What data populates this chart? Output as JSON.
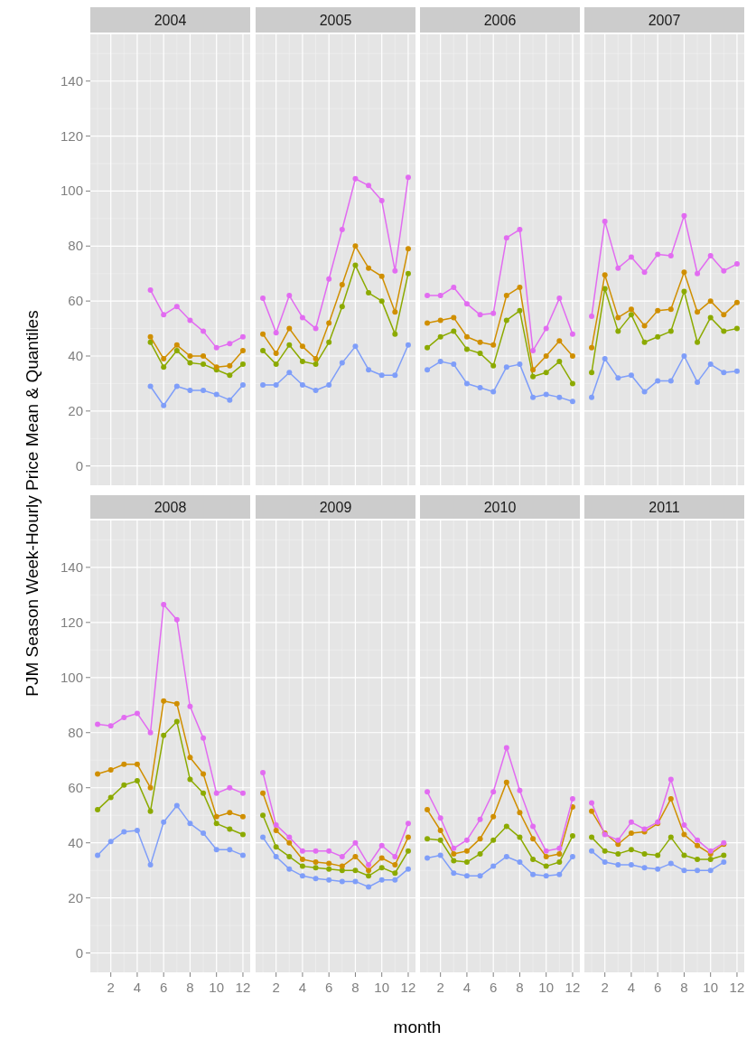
{
  "chart_data": [
    {
      "type": "line",
      "title": "2004",
      "x": [
        5,
        6,
        7,
        8,
        9,
        10,
        11,
        12
      ],
      "xlim": [
        0.45,
        12.55
      ],
      "ylim": [
        -7,
        157
      ],
      "xticks": [
        2,
        4,
        6,
        8,
        10,
        12
      ],
      "yticks": [
        0,
        20,
        40,
        60,
        80,
        100,
        120,
        140
      ],
      "grid": true,
      "marker": "circle",
      "tick_labels": "y",
      "series": [
        {
          "color": "#7f9ef9",
          "values": [
            29,
            22,
            29,
            27.5,
            27.5,
            26,
            24,
            29.5
          ]
        },
        {
          "color": "#8caa00",
          "values": [
            45,
            36,
            42,
            37.5,
            37,
            35,
            33,
            37
          ]
        },
        {
          "color": "#d08f00",
          "values": [
            47,
            39,
            44,
            40,
            40,
            36,
            36.5,
            42
          ]
        },
        {
          "color": "#e26cf1",
          "values": [
            64,
            55,
            58,
            53,
            49,
            43,
            44.5,
            47
          ]
        }
      ]
    },
    {
      "type": "line",
      "title": "2005",
      "x": [
        1,
        2,
        3,
        4,
        5,
        6,
        7,
        8,
        9,
        10,
        11,
        12
      ],
      "xlim": [
        0.45,
        12.55
      ],
      "ylim": [
        -7,
        157
      ],
      "xticks": [
        2,
        4,
        6,
        8,
        10,
        12
      ],
      "yticks": [
        0,
        20,
        40,
        60,
        80,
        100,
        120,
        140
      ],
      "grid": true,
      "marker": "circle",
      "tick_labels": false,
      "series": [
        {
          "color": "#7f9ef9",
          "values": [
            29.5,
            29.5,
            34,
            29.5,
            27.5,
            29.5,
            37.5,
            43.5,
            35,
            33,
            33,
            44
          ]
        },
        {
          "color": "#8caa00",
          "values": [
            42,
            37,
            44,
            38,
            37,
            45,
            58,
            73,
            63,
            60,
            48,
            70
          ]
        },
        {
          "color": "#d08f00",
          "values": [
            48,
            41,
            50,
            43.5,
            39,
            52,
            66,
            80,
            72,
            69,
            56,
            79
          ]
        },
        {
          "color": "#e26cf1",
          "values": [
            61,
            48.5,
            62,
            54,
            50,
            68,
            86,
            104.5,
            102,
            96.5,
            71,
            105
          ]
        }
      ]
    },
    {
      "type": "line",
      "title": "2006",
      "x": [
        1,
        2,
        3,
        4,
        5,
        6,
        7,
        8,
        9,
        10,
        11,
        12
      ],
      "xlim": [
        0.45,
        12.55
      ],
      "ylim": [
        -7,
        157
      ],
      "xticks": [
        2,
        4,
        6,
        8,
        10,
        12
      ],
      "yticks": [
        0,
        20,
        40,
        60,
        80,
        100,
        120,
        140
      ],
      "grid": true,
      "marker": "circle",
      "tick_labels": false,
      "series": [
        {
          "color": "#7f9ef9",
          "values": [
            35,
            38,
            37,
            30,
            28.5,
            27,
            36,
            37,
            25,
            26,
            25,
            23.5
          ]
        },
        {
          "color": "#8caa00",
          "values": [
            43,
            47,
            49,
            42.5,
            41,
            36.5,
            53,
            56.5,
            32.5,
            34,
            38,
            30
          ]
        },
        {
          "color": "#d08f00",
          "values": [
            52,
            53,
            54,
            47,
            45,
            44,
            62,
            65,
            35,
            40,
            45.5,
            40
          ]
        },
        {
          "color": "#e26cf1",
          "values": [
            62,
            62,
            65,
            59,
            55,
            55.5,
            83,
            86,
            42,
            50,
            61,
            48
          ]
        }
      ]
    },
    {
      "type": "line",
      "title": "2007",
      "x": [
        1,
        2,
        3,
        4,
        5,
        6,
        7,
        8,
        9,
        10,
        11,
        12
      ],
      "xlim": [
        0.45,
        12.55
      ],
      "ylim": [
        -7,
        157
      ],
      "xticks": [
        2,
        4,
        6,
        8,
        10,
        12
      ],
      "yticks": [
        0,
        20,
        40,
        60,
        80,
        100,
        120,
        140
      ],
      "grid": true,
      "marker": "circle",
      "tick_labels": false,
      "series": [
        {
          "color": "#7f9ef9",
          "values": [
            25,
            39,
            32,
            33,
            27,
            31,
            31,
            40,
            30.5,
            37,
            34,
            34.5
          ]
        },
        {
          "color": "#8caa00",
          "values": [
            34,
            64.5,
            49,
            55,
            45,
            47,
            49,
            63.5,
            45,
            54,
            49,
            50
          ]
        },
        {
          "color": "#d08f00",
          "values": [
            43,
            69.5,
            54,
            57,
            51,
            56.5,
            57,
            70.5,
            56,
            60,
            55,
            59.5
          ]
        },
        {
          "color": "#e26cf1",
          "values": [
            54.5,
            89,
            72,
            76,
            70.5,
            77,
            76.5,
            91,
            70,
            76.5,
            71,
            73.5
          ]
        }
      ]
    },
    {
      "type": "line",
      "title": "2008",
      "ylabel": "PJM Season Week-Hourly Price Mean & Quantiles",
      "x": [
        1,
        2,
        3,
        4,
        5,
        6,
        7,
        8,
        9,
        10,
        11,
        12
      ],
      "xlim": [
        0.45,
        12.55
      ],
      "ylim": [
        -7,
        157
      ],
      "xticks": [
        2,
        4,
        6,
        8,
        10,
        12
      ],
      "yticks": [
        0,
        20,
        40,
        60,
        80,
        100,
        120,
        140
      ],
      "grid": true,
      "marker": "circle",
      "series": [
        {
          "color": "#7f9ef9",
          "values": [
            35.5,
            40.5,
            44,
            44.5,
            32,
            47.5,
            53.5,
            47,
            43.5,
            37.5,
            37.5,
            35.5
          ]
        },
        {
          "color": "#8caa00",
          "values": [
            52,
            56.5,
            61,
            62.5,
            51.5,
            79,
            84,
            63,
            58,
            47,
            45,
            43
          ]
        },
        {
          "color": "#d08f00",
          "values": [
            65,
            66.5,
            68.5,
            68.5,
            60,
            91.5,
            90.5,
            71,
            65,
            49.5,
            51,
            49.5
          ]
        },
        {
          "color": "#e26cf1",
          "values": [
            83,
            82.5,
            85.5,
            87,
            80,
            126.5,
            121,
            89.5,
            78,
            58,
            60,
            58
          ]
        }
      ]
    },
    {
      "type": "line",
      "title": "2009",
      "xlabel": "month",
      "x": [
        1,
        2,
        3,
        4,
        5,
        6,
        7,
        8,
        9,
        10,
        11,
        12
      ],
      "xlim": [
        0.45,
        12.55
      ],
      "ylim": [
        -7,
        157
      ],
      "xticks": [
        2,
        4,
        6,
        8,
        10,
        12
      ],
      "yticks": [
        0,
        20,
        40,
        60,
        80,
        100,
        120,
        140
      ],
      "grid": true,
      "marker": "circle",
      "tick_labels": "x",
      "series": [
        {
          "color": "#7f9ef9",
          "values": [
            42,
            35,
            30.5,
            28,
            27,
            26.5,
            26,
            26,
            24,
            26.5,
            26.5,
            30.5
          ]
        },
        {
          "color": "#8caa00",
          "values": [
            50,
            38.5,
            35,
            31.5,
            31,
            30.5,
            30,
            30,
            28,
            31,
            29,
            37
          ]
        },
        {
          "color": "#d08f00",
          "values": [
            58,
            44.5,
            40,
            34,
            33,
            32.5,
            31.5,
            35,
            30,
            34.5,
            32,
            42
          ]
        },
        {
          "color": "#e26cf1",
          "values": [
            65.5,
            46.5,
            42,
            37,
            37,
            37,
            35,
            40,
            32,
            39,
            35,
            47
          ]
        }
      ]
    },
    {
      "type": "line",
      "title": "2010",
      "x": [
        1,
        2,
        3,
        4,
        5,
        6,
        7,
        8,
        9,
        10,
        11,
        12
      ],
      "xlim": [
        0.45,
        12.55
      ],
      "ylim": [
        -7,
        157
      ],
      "xticks": [
        2,
        4,
        6,
        8,
        10,
        12
      ],
      "yticks": [
        0,
        20,
        40,
        60,
        80,
        100,
        120,
        140
      ],
      "grid": true,
      "marker": "circle",
      "tick_labels": "x",
      "series": [
        {
          "color": "#7f9ef9",
          "values": [
            34.5,
            35.5,
            29,
            28,
            28,
            31.5,
            35,
            33,
            28.5,
            28,
            28.5,
            35
          ]
        },
        {
          "color": "#8caa00",
          "values": [
            41.5,
            41,
            33.5,
            33,
            36,
            41,
            46,
            42,
            34,
            31.5,
            33,
            42.5
          ]
        },
        {
          "color": "#d08f00",
          "values": [
            52,
            44.5,
            36,
            37,
            41.5,
            49.5,
            62,
            51,
            41.5,
            35,
            36,
            53
          ]
        },
        {
          "color": "#e26cf1",
          "values": [
            58.5,
            49,
            38,
            41,
            48.5,
            58.5,
            74.5,
            59,
            46,
            37,
            38,
            56
          ]
        }
      ]
    },
    {
      "type": "line",
      "title": "2011",
      "x": [
        1,
        2,
        3,
        4,
        5,
        6,
        7,
        8,
        9,
        10,
        11
      ],
      "xlim": [
        0.45,
        12.55
      ],
      "ylim": [
        -7,
        157
      ],
      "xticks": [
        2,
        4,
        6,
        8,
        10,
        12
      ],
      "yticks": [
        0,
        20,
        40,
        60,
        80,
        100,
        120,
        140
      ],
      "grid": true,
      "marker": "circle",
      "tick_labels": "x",
      "series": [
        {
          "color": "#7f9ef9",
          "values": [
            37,
            33,
            32,
            32,
            31,
            30.5,
            32.5,
            30,
            30,
            30,
            33
          ]
        },
        {
          "color": "#8caa00",
          "values": [
            42,
            37,
            36,
            37.5,
            36,
            35.5,
            42,
            35.5,
            34,
            34,
            35.5
          ]
        },
        {
          "color": "#d08f00",
          "values": [
            51.5,
            43.5,
            39.5,
            43.5,
            44,
            47,
            56,
            43,
            39,
            36,
            39.5
          ]
        },
        {
          "color": "#e26cf1",
          "values": [
            54.5,
            43,
            41,
            47.5,
            45,
            47.5,
            63,
            46.5,
            41,
            37,
            40
          ]
        }
      ]
    }
  ]
}
